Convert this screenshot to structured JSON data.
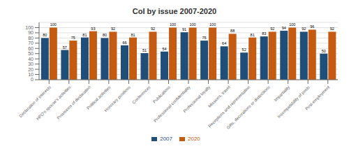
{
  "chart_data": {
    "type": "bar",
    "title": "CoI by issue 2007-2020",
    "categories": [
      "Declaration of interests",
      "HPO's spouse's activities",
      "Provisions of declaration",
      "Political activities",
      "Honorary positions",
      "Conferences",
      "Publications",
      "Professional confidentiality",
      "Professional loyalty",
      "Missions, travel",
      "Receptions and representation",
      "Gifts, decorations or distinctions",
      "Impartiality",
      "Incompatability of posts",
      "Post-employment"
    ],
    "series": [
      {
        "name": "2007",
        "color": "#1f4e79",
        "values": [
          80,
          57,
          81,
          80,
          66,
          51,
          54,
          91,
          75,
          64,
          52,
          83,
          94,
          92,
          50
        ]
      },
      {
        "name": "2020",
        "color": "#c55a11",
        "values": [
          100,
          75,
          93,
          92,
          81,
          92,
          100,
          100,
          100,
          88,
          81,
          92,
          100,
          96,
          92
        ]
      }
    ],
    "ylim": [
      0,
      110
    ],
    "yticks": [
      0,
      10,
      20,
      30,
      40,
      50,
      60,
      70,
      80,
      90,
      100
    ],
    "grid": true,
    "data_labels": true,
    "legend": "bottom"
  }
}
